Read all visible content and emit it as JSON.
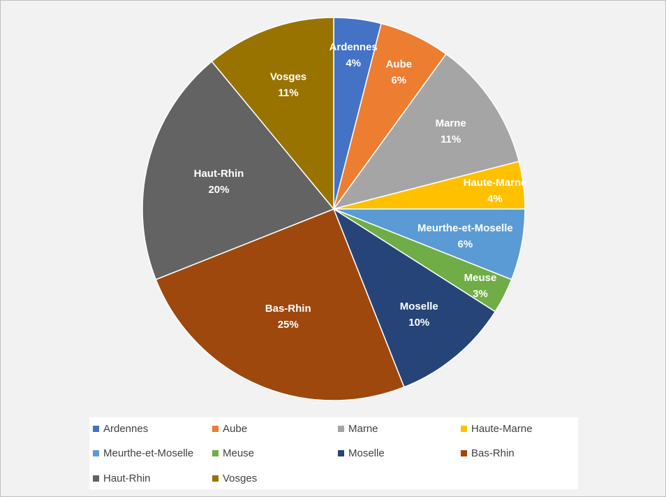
{
  "chart_data": {
    "type": "pie",
    "title": "",
    "categories": [
      "Ardennes",
      "Aube",
      "Marne",
      "Haute-Marne",
      "Meurthe-et-Moselle",
      "Meuse",
      "Moselle",
      "Bas-Rhin",
      "Haut-Rhin",
      "Vosges"
    ],
    "values": [
      4,
      6,
      11,
      4,
      6,
      3,
      10,
      25,
      20,
      11
    ],
    "value_labels": [
      "4%",
      "6%",
      "11%",
      "4%",
      "6%",
      "3%",
      "10%",
      "25%",
      "20%",
      "11%"
    ],
    "colors": [
      "#4472c4",
      "#ed7d31",
      "#a5a5a5",
      "#ffc000",
      "#5b9bd5",
      "#70ad47",
      "#264478",
      "#9e480e",
      "#636363",
      "#997300"
    ],
    "start_angle_deg": 0,
    "direction": "clockwise",
    "legend_position": "bottom"
  }
}
